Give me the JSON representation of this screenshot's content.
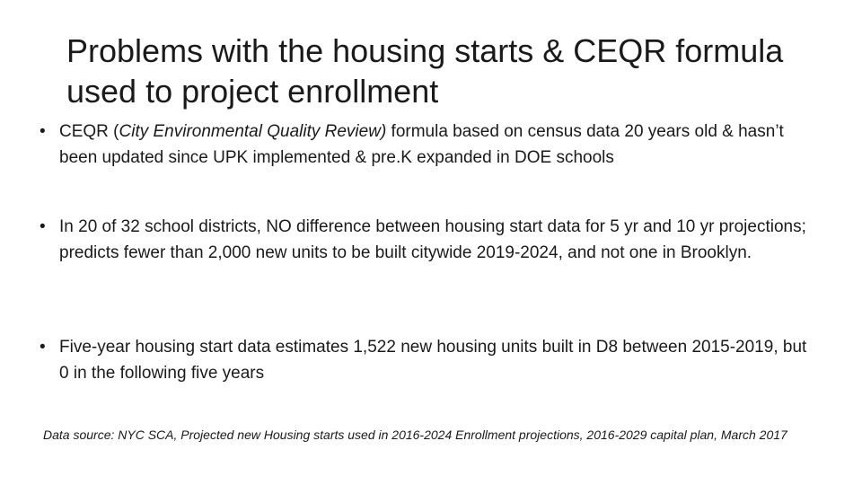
{
  "slide": {
    "title": "Problems with the housing starts & CEQR formula used to project enrollment",
    "bullet_glyph": "•",
    "bullets": [
      {
        "prefix": "CEQR (",
        "emphasis": "City Environmental Quality Review)",
        "suffix": " formula based on census data 20 years old & hasn’t been updated since UPK implemented & pre.K expanded in DOE schools"
      },
      {
        "text": "In 20 of 32 school districts, NO difference between housing start data for 5 yr and 10 yr projections; predicts fewer than 2,000 new units to be built citywide 2019-2024, and not one in Brooklyn."
      },
      {
        "text": "Five-year housing start data estimates 1,522 new housing units built in D8 between 2015-2019, but 0 in the following five years"
      }
    ],
    "source_note": "Data source: NYC SCA, Projected new Housing starts used in 2016-2024 Enrollment projections, 2016-2029 capital plan, March 2017"
  }
}
